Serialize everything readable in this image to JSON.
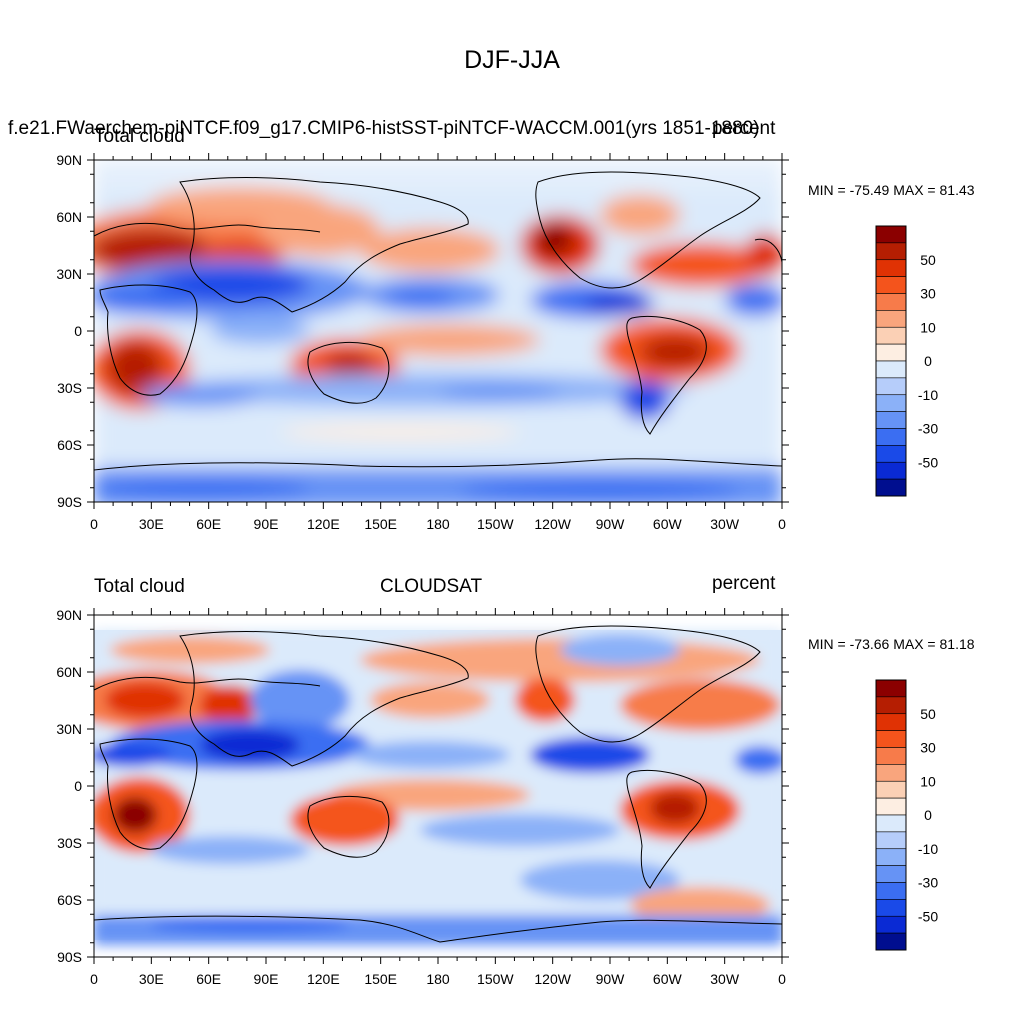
{
  "title": "DJF-JJA",
  "panels": [
    {
      "left_text": "Total cloud",
      "center_text": "f.e21.FWaerchem-piNTCF.f09_g17.CMIP6-histSST-piNTCF-WACCM.001(yrs 1851-1880)",
      "right_text": "percent",
      "stats": "MIN = -75.49 MAX =  81.43"
    },
    {
      "left_text": "Total cloud",
      "center_text": "CLOUDSAT",
      "right_text": "percent",
      "stats": "MIN = -73.66 MAX =  81.18"
    }
  ],
  "axes": {
    "lat_labels": [
      "90N",
      "60N",
      "30N",
      "0",
      "30S",
      "60S",
      "90S"
    ],
    "lon_labels": [
      "0",
      "30E",
      "60E",
      "90E",
      "120E",
      "150E",
      "180",
      "150W",
      "120W",
      "90W",
      "60W",
      "30W",
      "0"
    ]
  },
  "colorbar": {
    "labels": [
      "50",
      "30",
      "10",
      "0",
      "-10",
      "-30",
      "-50"
    ],
    "colors": [
      "#8b0000",
      "#b51e02",
      "#e03204",
      "#f4541c",
      "#f77b4a",
      "#f9a57d",
      "#fbd0b5",
      "#fdeee2",
      "#dbeafb",
      "#b6cdfa",
      "#8bb1f8",
      "#6693f5",
      "#3b6ef2",
      "#1a4ae8",
      "#0a2ad4",
      "#000e8f"
    ]
  },
  "palette": {
    "land_outline": "#000000",
    "frame": "#000000"
  }
}
